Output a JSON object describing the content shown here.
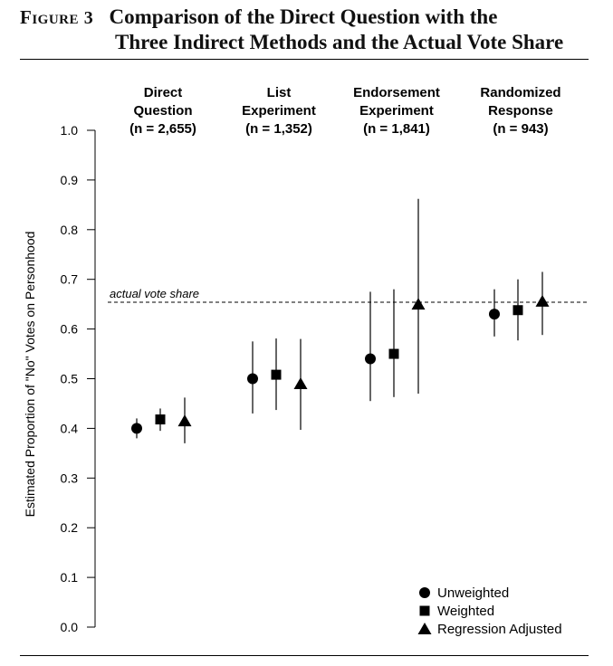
{
  "figure": {
    "label": "Figure",
    "number": "3",
    "title_line1": "Comparison of the Direct Question with the",
    "title_line2": "Three Indirect Methods and the Actual Vote Share"
  },
  "chart_data": {
    "type": "scatter",
    "title": "Comparison of the Direct Question with the Three Indirect Methods and the Actual Vote Share",
    "xlabel": "",
    "ylabel": "Estimated Proportion of \"No\" Votes on Personhood",
    "ylim": [
      0,
      1
    ],
    "yticks": [
      "0.0",
      "0.1",
      "0.2",
      "0.3",
      "0.4",
      "0.5",
      "0.6",
      "0.7",
      "0.8",
      "0.9",
      "1.0"
    ],
    "grid": false,
    "legend_position": "bottom-right",
    "groups": [
      {
        "label_lines": [
          "Direct",
          "Question",
          "(n = 2,655)"
        ]
      },
      {
        "label_lines": [
          "List",
          "Experiment",
          "(n = 1,352)"
        ]
      },
      {
        "label_lines": [
          "Endorsement",
          "Experiment",
          "(n = 1,841)"
        ]
      },
      {
        "label_lines": [
          "Randomized",
          "Response",
          "(n = 943)"
        ]
      }
    ],
    "series": [
      {
        "name": "Unweighted",
        "marker": "circle",
        "points": [
          {
            "value": 0.4,
            "lower": 0.38,
            "upper": 0.42
          },
          {
            "value": 0.5,
            "lower": 0.43,
            "upper": 0.575
          },
          {
            "value": 0.54,
            "lower": 0.455,
            "upper": 0.675
          },
          {
            "value": 0.63,
            "lower": 0.585,
            "upper": 0.68
          }
        ]
      },
      {
        "name": "Weighted",
        "marker": "square",
        "points": [
          {
            "value": 0.418,
            "lower": 0.395,
            "upper": 0.44
          },
          {
            "value": 0.508,
            "lower": 0.437,
            "upper": 0.581
          },
          {
            "value": 0.55,
            "lower": 0.463,
            "upper": 0.68
          },
          {
            "value": 0.638,
            "lower": 0.577,
            "upper": 0.7
          }
        ]
      },
      {
        "name": "Regression Adjusted",
        "marker": "triangle",
        "points": [
          {
            "value": 0.415,
            "lower": 0.37,
            "upper": 0.462
          },
          {
            "value": 0.49,
            "lower": 0.397,
            "upper": 0.58
          },
          {
            "value": 0.65,
            "lower": 0.47,
            "upper": 0.862
          },
          {
            "value": 0.656,
            "lower": 0.588,
            "upper": 0.715
          }
        ]
      }
    ],
    "reference_line": {
      "value": 0.654,
      "label": "actual vote share",
      "style": "dashed"
    }
  }
}
